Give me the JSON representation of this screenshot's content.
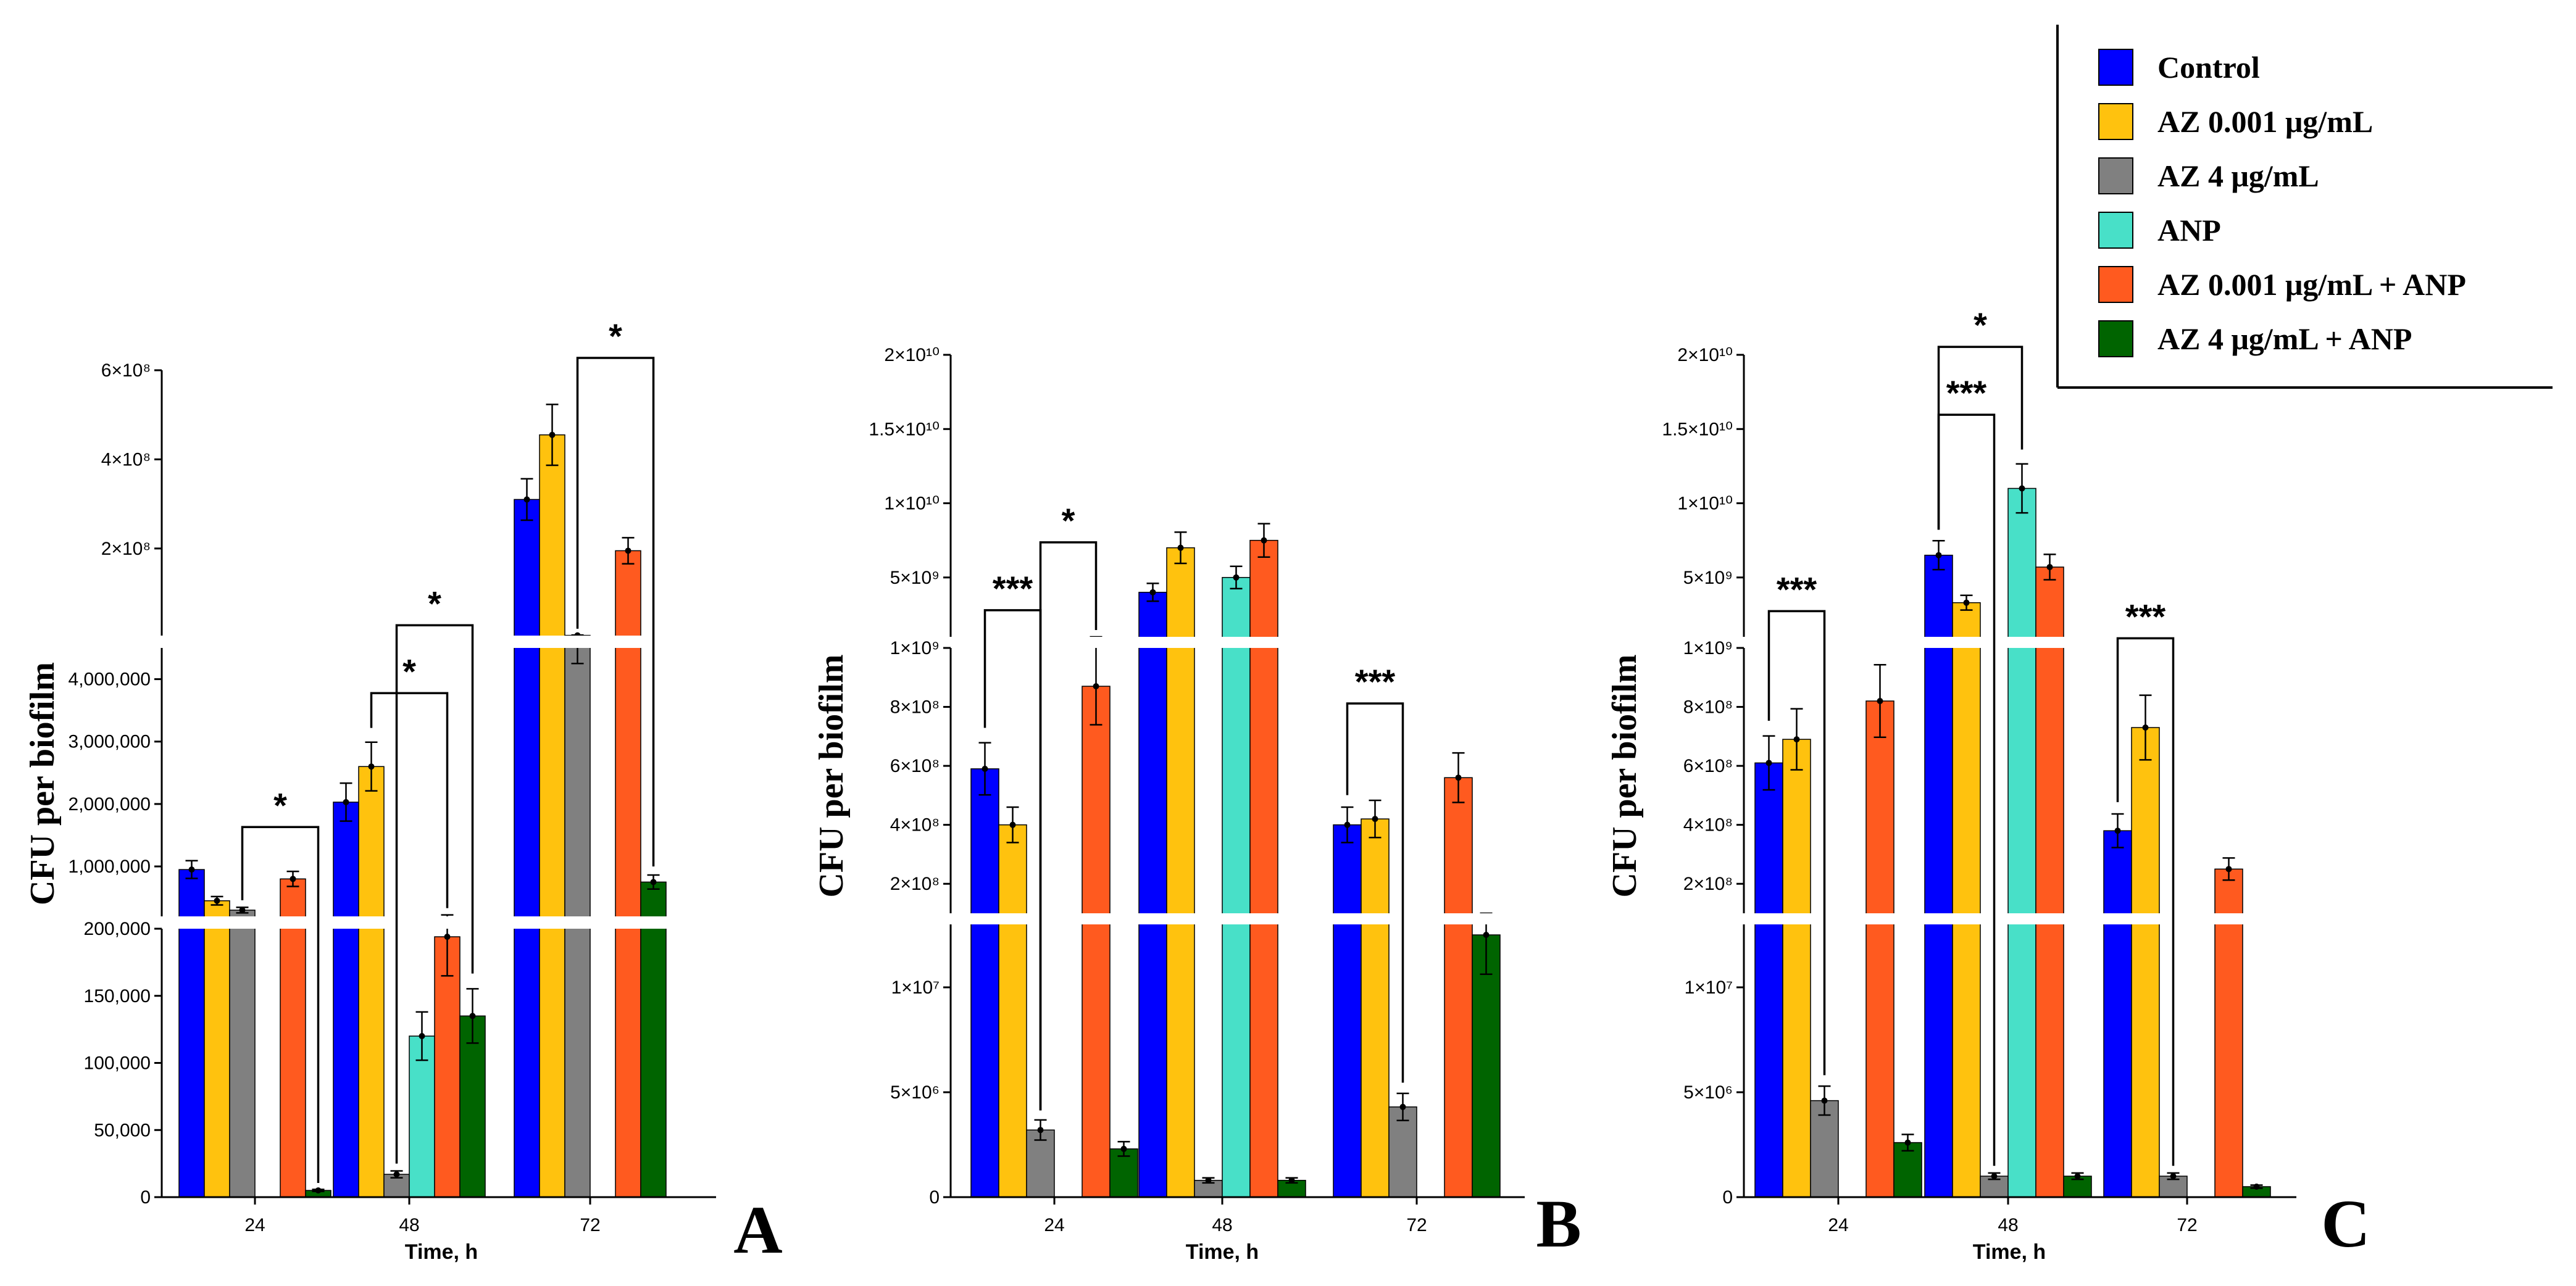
{
  "chart_data": [
    {
      "type": "bar",
      "panel_label": "A",
      "xlabel": "Time, h",
      "ylabel": "CFU per biofilm",
      "categories": [
        "24",
        "48",
        "72"
      ],
      "y_scale": "segmented",
      "y_segments": [
        {
          "range": [
            0,
            200000
          ],
          "ticks": [
            "0",
            "50,000",
            "100,000",
            "150,000",
            "200,000"
          ],
          "tick_values": [
            0,
            50000,
            100000,
            150000,
            200000
          ]
        },
        {
          "range": [
            200000,
            4500000
          ],
          "ticks": [
            "1,000,000",
            "2,000,000",
            "3,000,000",
            "4,000,000"
          ],
          "tick_values": [
            1000000,
            2000000,
            3000000,
            4000000
          ]
        },
        {
          "range": [
            4500000,
            600000000
          ],
          "ticks": [
            "2×10⁸",
            "4×10⁸",
            "6×10⁸"
          ],
          "tick_values": [
            200000000,
            400000000,
            600000000
          ]
        }
      ],
      "series": [
        {
          "name": "Control",
          "values": [
            950000,
            2030000,
            310000000
          ]
        },
        {
          "name": "AZ 0.001 μg/mL",
          "values": [
            450000,
            2600000,
            455000000
          ]
        },
        {
          "name": "AZ 4 μg/mL",
          "values": [
            300000,
            17000,
            5000000
          ]
        },
        {
          "name": "ANP",
          "values": [
            null,
            120000,
            null
          ]
        },
        {
          "name": "AZ 0.001 μg/mL + ANP",
          "values": [
            800000,
            194000,
            195000000
          ]
        },
        {
          "name": "AZ 4 μg/mL + ANP",
          "values": [
            5000,
            135000,
            750000
          ]
        }
      ],
      "significance": [
        {
          "label": "*",
          "between": [
            "AZ 4 μg/mL",
            "AZ 4 μg/mL + ANP"
          ],
          "time": "24"
        },
        {
          "label": "*",
          "between": [
            "AZ 0.001 μg/mL",
            "AZ 0.001 μg/mL + ANP"
          ],
          "time": "48"
        },
        {
          "label": "*",
          "between": [
            "AZ 4 μg/mL",
            "AZ 4 μg/mL + ANP"
          ],
          "time": "48"
        },
        {
          "label": "*",
          "between": [
            "AZ 4 μg/mL",
            "AZ 4 μg/mL + ANP"
          ],
          "time": "72"
        }
      ]
    },
    {
      "type": "bar",
      "panel_label": "B",
      "xlabel": "Time, h",
      "ylabel": "CFU per biofilm",
      "categories": [
        "24",
        "48",
        "72"
      ],
      "y_scale": "segmented",
      "y_segments": [
        {
          "range": [
            0,
            13000000
          ],
          "ticks": [
            "0",
            "5×10⁶",
            "1×10⁷"
          ],
          "tick_values": [
            0,
            5000000,
            10000000
          ]
        },
        {
          "range": [
            100000000,
            1000000000
          ],
          "ticks": [
            "2×10⁸",
            "4×10⁸",
            "6×10⁸",
            "8×10⁸",
            "1×10⁹"
          ],
          "tick_values": [
            200000000,
            400000000,
            600000000,
            800000000,
            1000000000
          ]
        },
        {
          "range": [
            1000000000,
            20000000000
          ],
          "ticks": [
            "5×10⁹",
            "1×10¹⁰",
            "1.5×10¹⁰",
            "2×10¹⁰"
          ],
          "tick_values": [
            5000000000,
            10000000000,
            15000000000,
            20000000000
          ]
        }
      ],
      "series": [
        {
          "name": "Control",
          "values": [
            590000000,
            4000000000,
            400000000
          ]
        },
        {
          "name": "AZ 0.001 μg/mL",
          "values": [
            400000000,
            7000000000,
            420000000
          ]
        },
        {
          "name": "AZ 4 μg/mL",
          "values": [
            3200000,
            800000,
            4300000
          ]
        },
        {
          "name": "ANP",
          "values": [
            null,
            5000000000,
            null
          ]
        },
        {
          "name": "AZ 0.001 μg/mL + ANP",
          "values": [
            870000000,
            7500000000,
            560000000
          ]
        },
        {
          "name": "AZ 4 μg/mL + ANP",
          "values": [
            2300000,
            800000,
            12500000
          ]
        }
      ],
      "significance": [
        {
          "label": "***",
          "between": [
            "Control",
            "AZ 4 μg/mL"
          ],
          "time": "24"
        },
        {
          "label": "*",
          "between": [
            "AZ 4 μg/mL",
            "AZ 0.001 μg/mL + ANP"
          ],
          "time": "24"
        },
        {
          "label": "***",
          "between": [
            "Control",
            "AZ 4 μg/mL"
          ],
          "time": "72"
        }
      ]
    },
    {
      "type": "bar",
      "panel_label": "C",
      "xlabel": "Time, h",
      "ylabel": "CFU per biofilm",
      "categories": [
        "24",
        "48",
        "72"
      ],
      "y_scale": "segmented",
      "y_segments": [
        {
          "range": [
            0,
            13000000
          ],
          "ticks": [
            "0",
            "5×10⁶",
            "1×10⁷"
          ],
          "tick_values": [
            0,
            5000000,
            10000000
          ]
        },
        {
          "range": [
            100000000,
            1000000000
          ],
          "ticks": [
            "2×10⁸",
            "4×10⁸",
            "6×10⁸",
            "8×10⁸",
            "1×10⁹"
          ],
          "tick_values": [
            200000000,
            400000000,
            600000000,
            800000000,
            1000000000
          ]
        },
        {
          "range": [
            1000000000,
            20000000000
          ],
          "ticks": [
            "5×10⁹",
            "1×10¹⁰",
            "1.5×10¹⁰",
            "2×10¹⁰"
          ],
          "tick_values": [
            5000000000,
            10000000000,
            15000000000,
            20000000000
          ]
        }
      ],
      "series": [
        {
          "name": "Control",
          "values": [
            610000000,
            6500000000,
            380000000
          ]
        },
        {
          "name": "AZ 0.001 μg/mL",
          "values": [
            690000000,
            3300000000,
            730000000
          ]
        },
        {
          "name": "AZ 4 μg/mL",
          "values": [
            4600000,
            1000000,
            1000000
          ]
        },
        {
          "name": "ANP",
          "values": [
            null,
            11000000000,
            null
          ]
        },
        {
          "name": "AZ 0.001 μg/mL + ANP",
          "values": [
            820000000,
            5700000000,
            250000000
          ]
        },
        {
          "name": "AZ 4 μg/mL + ANP",
          "values": [
            2600000,
            1000000,
            500000
          ]
        }
      ],
      "significance": [
        {
          "label": "***",
          "between": [
            "Control",
            "AZ 4 μg/mL"
          ],
          "time": "24"
        },
        {
          "label": "***",
          "between": [
            "Control",
            "AZ 4 μg/mL"
          ],
          "time": "48"
        },
        {
          "label": "*",
          "between": [
            "Control",
            "ANP"
          ],
          "time": "48"
        },
        {
          "label": "***",
          "between": [
            "Control",
            "AZ 4 μg/mL"
          ],
          "time": "72"
        }
      ]
    }
  ],
  "legend": {
    "placement": "top-right",
    "entries": [
      {
        "name": "Control",
        "color": "#0000ff"
      },
      {
        "name": "AZ 0.001 μg/mL",
        "color": "#ffc20e"
      },
      {
        "name": "AZ 4 μg/mL",
        "color": "#808080"
      },
      {
        "name": "ANP",
        "color": "#48e0c8"
      },
      {
        "name": "AZ 0.001 μg/mL + ANP",
        "color": "#ff5a1f"
      },
      {
        "name": "AZ 4 μg/mL + ANP",
        "color": "#006400"
      }
    ]
  }
}
